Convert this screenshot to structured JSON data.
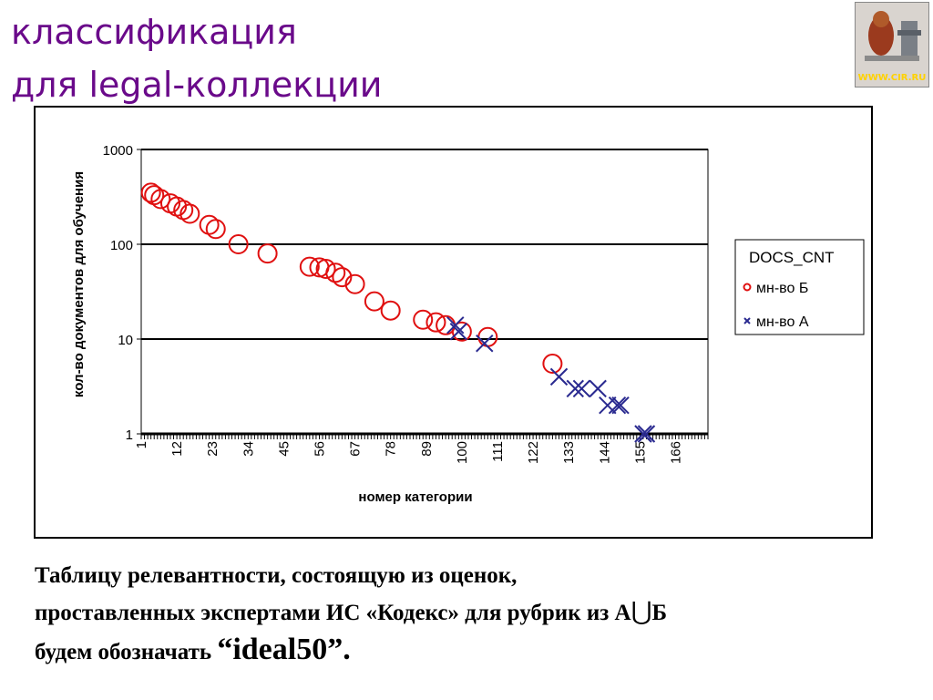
{
  "slide": {
    "title_line1": "классификация",
    "title_line2": "для legal-коллекции",
    "logo_text": "WWW.CIR.RU",
    "body_line1": "Таблицу релевантности, состоящую из оценок,",
    "body_line2_a": "проставленных экспертами ИС «Кодекс» для рубрик из А",
    "union_symbol": "⋃",
    "body_line2_b": "Б",
    "body_line3_a": "будем обозначать ",
    "body_line3_b": "“ideal50”."
  },
  "chart_data": {
    "type": "scatter",
    "title": "",
    "xlabel": "номер категории",
    "ylabel": "кол-во документов для обучения",
    "yscale": "log",
    "ylim": [
      1,
      1000
    ],
    "xlim": [
      1,
      176
    ],
    "y_ticks": [
      "1",
      "10",
      "100",
      "1000"
    ],
    "x_ticks": [
      "1",
      "12",
      "23",
      "34",
      "45",
      "56",
      "67",
      "78",
      "89",
      "100",
      "111",
      "122",
      "133",
      "144",
      "155",
      "166"
    ],
    "legend": {
      "title": "DOCS_CNT",
      "position": "right",
      "entries": [
        "мн-во Б",
        "мн-во А"
      ]
    },
    "colors": {
      "series_b": "#e01010",
      "series_a": "#2a2a90",
      "grid": "#000000"
    },
    "series": [
      {
        "name": "мн-во Б",
        "marker": "circle",
        "points": [
          [
            4,
            350
          ],
          [
            5,
            330
          ],
          [
            7,
            300
          ],
          [
            10,
            270
          ],
          [
            12,
            250
          ],
          [
            14,
            230
          ],
          [
            16,
            210
          ],
          [
            22,
            160
          ],
          [
            24,
            145
          ],
          [
            31,
            100
          ],
          [
            40,
            80
          ],
          [
            53,
            58
          ],
          [
            56,
            57
          ],
          [
            58,
            55
          ],
          [
            61,
            50
          ],
          [
            63,
            45
          ],
          [
            67,
            38
          ],
          [
            73,
            25
          ],
          [
            78,
            20
          ],
          [
            88,
            16
          ],
          [
            92,
            15
          ],
          [
            95,
            14
          ],
          [
            100,
            12
          ],
          [
            108,
            10.5
          ],
          [
            128,
            5.5
          ]
        ]
      },
      {
        "name": "мн-во А",
        "marker": "x",
        "points": [
          [
            98,
            14
          ],
          [
            99,
            12
          ],
          [
            107,
            9
          ],
          [
            130,
            4
          ],
          [
            135,
            3
          ],
          [
            137,
            3
          ],
          [
            142,
            3
          ],
          [
            145,
            2
          ],
          [
            148,
            2
          ],
          [
            149,
            2
          ],
          [
            156,
            1
          ],
          [
            157,
            1
          ]
        ]
      }
    ]
  }
}
